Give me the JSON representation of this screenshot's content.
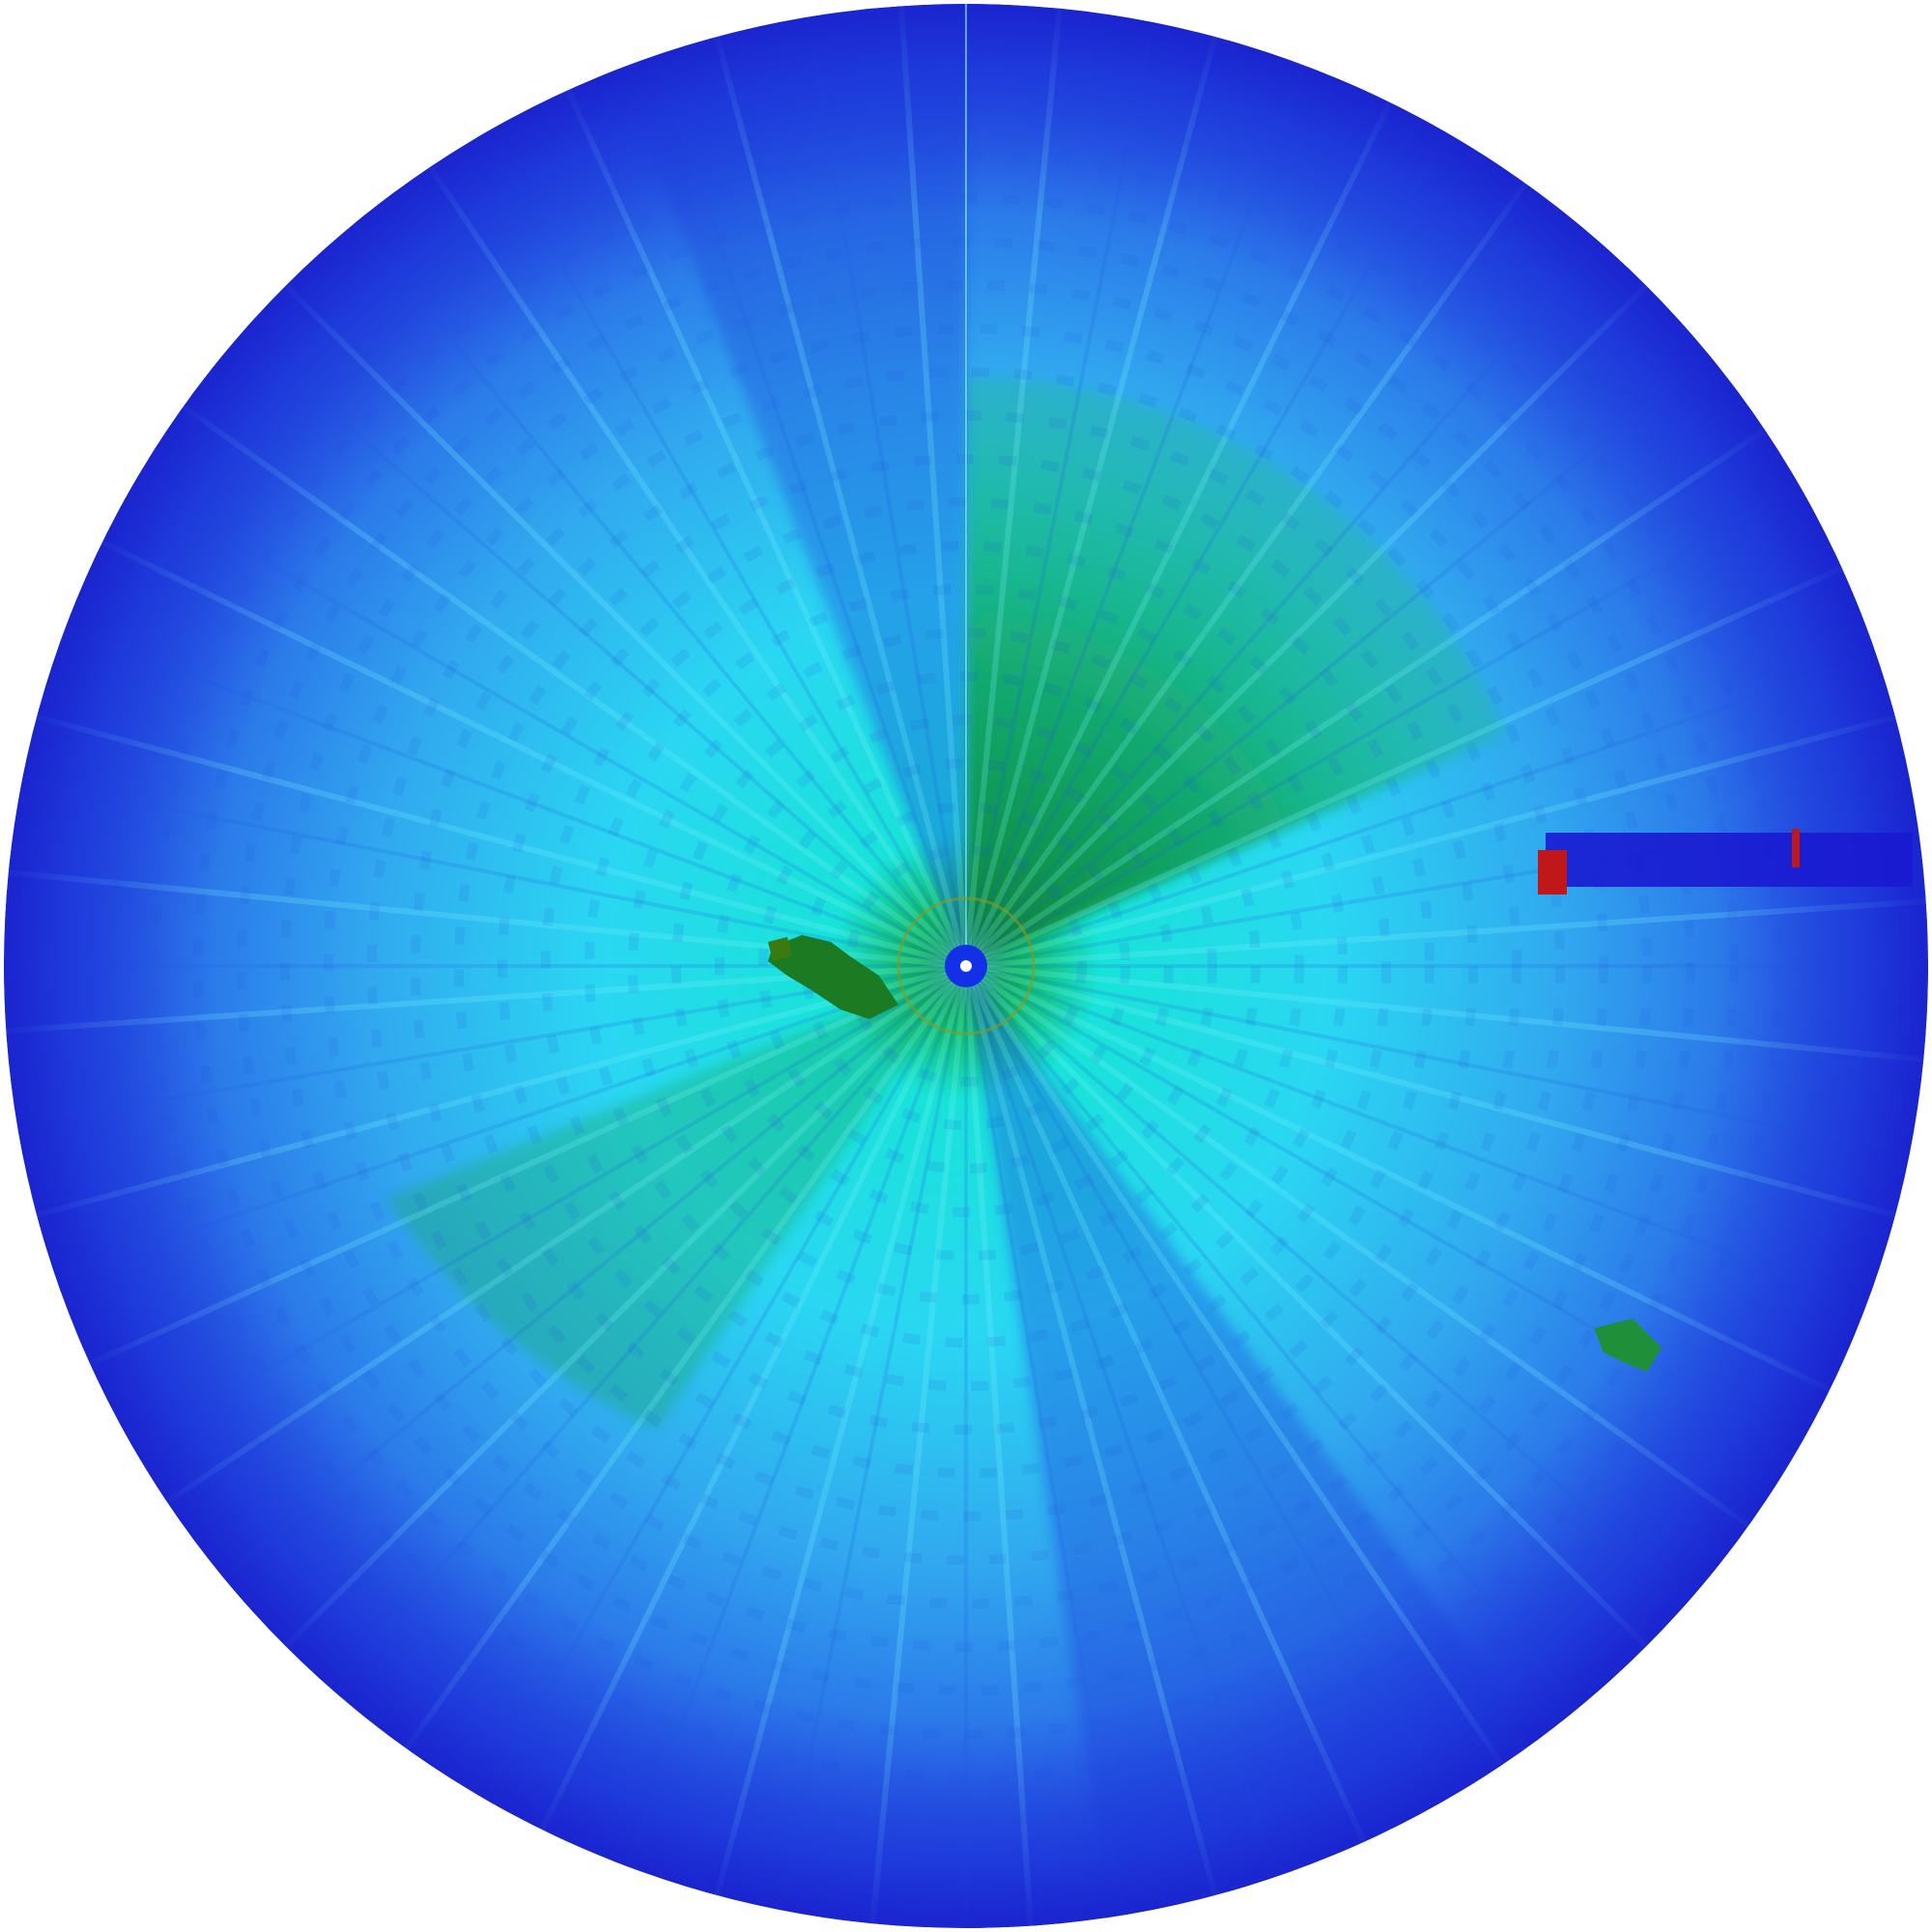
{
  "image": {
    "kind": "polar radar sweep image",
    "labels": []
  },
  "colors": {
    "background": "#ffffff",
    "edge_blue": "#1c2fd8",
    "mid_blue": "#2a6fe8",
    "light_blue": "#3ab0ef",
    "cyan": "#12e6ef",
    "green": "#0f9a52",
    "dark_green": "#0a7a2a",
    "hotspot_red": "#c0181a",
    "center_blue": "#1230e6",
    "center_dot": "#ffffff"
  },
  "features": [
    {
      "name": "strong-return-east",
      "color": "#c0181a"
    },
    {
      "name": "dark-streak-east",
      "color": "#1a1ad0"
    },
    {
      "name": "green-patch-southeast",
      "color": "#1f8f3a"
    },
    {
      "name": "green-patch-west",
      "color": "#1c7a22"
    },
    {
      "name": "high-intensity-sector-northeast",
      "color": "#12a85a"
    }
  ]
}
